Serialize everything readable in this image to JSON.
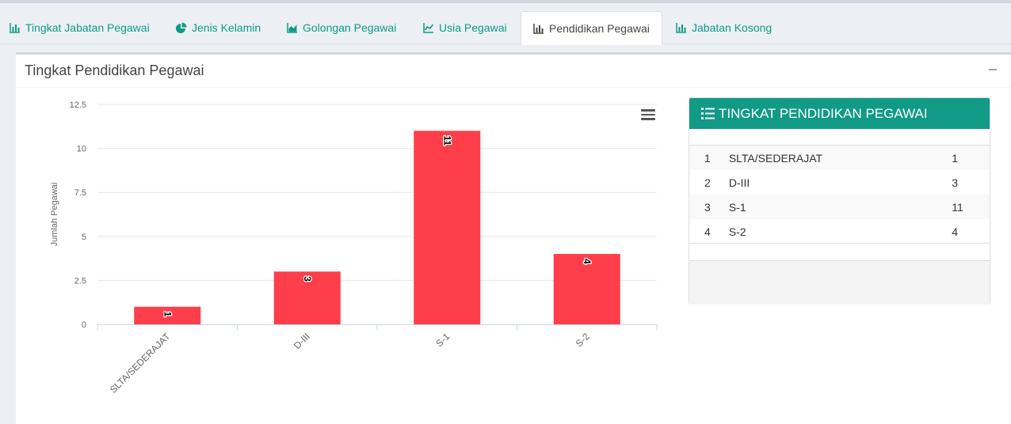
{
  "tabs": [
    {
      "label": "Tingkat Jabatan Pegawai",
      "icon": "bar-chart-icon"
    },
    {
      "label": "Jenis Kelamin",
      "icon": "pie-chart-icon"
    },
    {
      "label": "Golongan Pegawai",
      "icon": "area-chart-icon"
    },
    {
      "label": "Usia Pegawai",
      "icon": "line-chart-icon"
    },
    {
      "label": "Pendidikan Pegawai",
      "icon": "bar-chart-icon"
    },
    {
      "label": "Jabatan Kosong",
      "icon": "bar-chart-icon"
    }
  ],
  "active_tab": "Pendidikan Pegawai",
  "box": {
    "title": "Tingkat Pendidikan Pegawai"
  },
  "colors": {
    "accent": "#119a86",
    "bar": "#fe3e4a"
  },
  "chart_data": {
    "type": "bar",
    "categories": [
      "SLTA/SEDERAJAT",
      "D-III",
      "S-1",
      "S-2"
    ],
    "values": [
      1,
      3,
      11,
      4
    ],
    "ylabel": "Jumlah Pegawai",
    "yticks": [
      "0",
      "2.5",
      "5",
      "7.5",
      "10",
      "12.5"
    ],
    "ylim": [
      0,
      12.5
    ],
    "data_labels": [
      "1",
      "3",
      "11",
      "4"
    ],
    "grid": true
  },
  "panel": {
    "title": "TINGKAT PENDIDIKAN PEGAWAI",
    "rows": [
      {
        "no": "1",
        "name": "SLTA/SEDERAJAT",
        "count": "1"
      },
      {
        "no": "2",
        "name": "D-III",
        "count": "3"
      },
      {
        "no": "3",
        "name": "S-1",
        "count": "11"
      },
      {
        "no": "4",
        "name": "S-2",
        "count": "4"
      }
    ]
  }
}
